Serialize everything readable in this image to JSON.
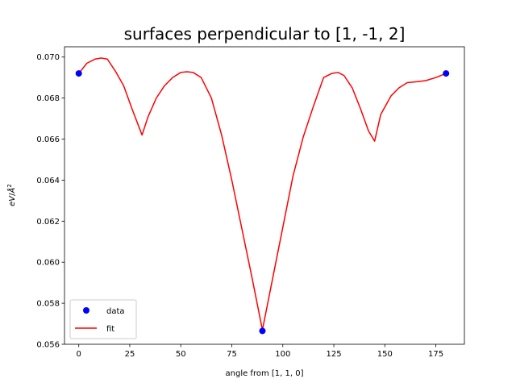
{
  "chart_data": {
    "type": "line",
    "title": "surfaces perpendicular to [1, -1, 2]",
    "xlabel": "angle from [1, 1, 0]",
    "ylabel": "eV/Å²",
    "xlim": [
      -7,
      189
    ],
    "ylim": [
      0.056,
      0.0705
    ],
    "xticks": [
      0,
      25,
      50,
      75,
      100,
      125,
      150,
      175
    ],
    "yticks": [
      0.056,
      0.058,
      0.06,
      0.062,
      0.064,
      0.066,
      0.068,
      0.07
    ],
    "ytick_labels": [
      "0.056",
      "0.058",
      "0.060",
      "0.062",
      "0.064",
      "0.066",
      "0.068",
      "0.070"
    ],
    "grid": false,
    "legend_position": "lower-left",
    "series": [
      {
        "name": "data",
        "kind": "scatter",
        "color": "#0000ff",
        "x": [
          0,
          90,
          180
        ],
        "y": [
          0.0692,
          0.05665,
          0.0692
        ]
      },
      {
        "name": "fit",
        "kind": "line",
        "color": "#ff0000",
        "x": [
          0,
          4,
          8,
          11,
          14,
          18,
          22,
          26,
          31,
          34,
          38,
          42,
          46,
          50,
          53,
          56,
          60,
          65,
          70,
          75,
          80,
          85,
          90,
          95,
          100,
          105,
          110,
          115,
          120,
          124,
          127,
          130,
          134,
          138,
          142,
          145,
          148,
          153,
          157,
          161,
          166,
          170,
          175,
          180
        ],
        "y": [
          0.0692,
          0.0697,
          0.0699,
          0.06995,
          0.0699,
          0.0693,
          0.0686,
          0.0675,
          0.0662,
          0.0671,
          0.068,
          0.0686,
          0.069,
          0.06925,
          0.06928,
          0.06925,
          0.069,
          0.068,
          0.0662,
          0.064,
          0.0616,
          0.0592,
          0.0567,
          0.0592,
          0.0617,
          0.0642,
          0.0661,
          0.0676,
          0.069,
          0.0692,
          0.06925,
          0.0691,
          0.0685,
          0.0675,
          0.0664,
          0.0659,
          0.0672,
          0.0681,
          0.0685,
          0.06875,
          0.0688,
          0.06885,
          0.069,
          0.0692
        ]
      }
    ]
  }
}
